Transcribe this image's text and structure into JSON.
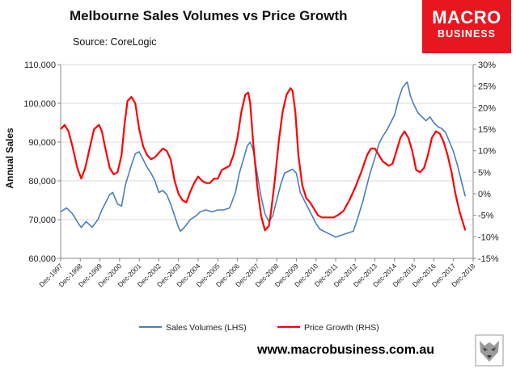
{
  "header": {
    "title": "Melbourne Sales Volumes vs Price Growth",
    "source": "Source: CoreLogic",
    "logo_line1": "MACRO",
    "logo_line2": "BUSINESS",
    "website": "www.macrobusiness.com.au"
  },
  "chart_data": {
    "type": "line",
    "title": "Melbourne Sales Volumes vs Price Growth",
    "ylabel": "Annual Sales",
    "y2label": "",
    "ylim": [
      60000,
      110000
    ],
    "y2lim": [
      -15,
      30
    ],
    "y_ticks": [
      "60,000",
      "70,000",
      "80,000",
      "90,000",
      "100,000",
      "110,000"
    ],
    "y2_ticks": [
      "-15%",
      "-10%",
      "-5%",
      "0%",
      "5%",
      "10%",
      "15%",
      "20%",
      "25%",
      "30%"
    ],
    "x_ticks": [
      "Dec-1997",
      "Dec-1998",
      "Dec-1999",
      "Dec-2000",
      "Dec-2001",
      "Dec-2002",
      "Dec-2003",
      "Dec-2004",
      "Dec-2005",
      "Dec-2006",
      "Dec-2007",
      "Dec-2008",
      "Dec-2009",
      "Dec-2010",
      "Dec-2011",
      "Dec-2012",
      "Dec-2013",
      "Dec-2014",
      "Dec-2015",
      "Dec-2016",
      "Dec-2017",
      "Dec-2018"
    ],
    "grid": "horizontal",
    "legend_position": "bottom",
    "series": [
      {
        "name": "Sales Volumes (LHS)",
        "axis": "left",
        "color": "#4a7ebb",
        "x": [
          1997.9,
          1998.2,
          1998.5,
          1998.8,
          1998.95,
          1999.2,
          1999.5,
          1999.8,
          2000.0,
          2000.2,
          2000.4,
          2000.55,
          2000.8,
          2001.0,
          2001.2,
          2001.5,
          2001.7,
          2001.9,
          2002.1,
          2002.3,
          2002.5,
          2002.7,
          2002.9,
          2003.1,
          2003.3,
          2003.5,
          2003.7,
          2003.9,
          2004.0,
          2004.2,
          2004.5,
          2004.8,
          2005.0,
          2005.3,
          2005.6,
          2005.9,
          2006.2,
          2006.5,
          2006.8,
          2007.0,
          2007.2,
          2007.4,
          2007.55,
          2007.7,
          2007.9,
          2008.1,
          2008.3,
          2008.5,
          2008.7,
          2008.9,
          2009.1,
          2009.3,
          2009.5,
          2009.7,
          2009.9,
          2010.1,
          2010.3,
          2010.5,
          2010.7,
          2010.9,
          2011.1,
          2011.3,
          2011.5,
          2011.7,
          2011.9,
          2012.2,
          2012.5,
          2012.8,
          2013.0,
          2013.3,
          2013.6,
          2013.9,
          2014.1,
          2014.3,
          2014.5,
          2014.7,
          2014.9,
          2015.1,
          2015.3,
          2015.45,
          2015.55,
          2015.7,
          2015.9,
          2016.1,
          2016.3,
          2016.5,
          2016.7,
          2016.9,
          2017.1,
          2017.3,
          2017.5,
          2017.7,
          2017.9,
          2018.1,
          2018.3,
          2018.5
        ],
        "values": [
          72000,
          73000,
          71500,
          69000,
          68000,
          69500,
          68000,
          70000,
          72500,
          74500,
          76500,
          77000,
          74000,
          73500,
          79000,
          84000,
          87000,
          87500,
          85500,
          83500,
          82000,
          80000,
          77000,
          77500,
          76500,
          74000,
          71000,
          68000,
          67000,
          68000,
          70000,
          71000,
          72000,
          72500,
          72000,
          72500,
          72500,
          73000,
          77000,
          82000,
          85500,
          89000,
          90000,
          88000,
          82000,
          76000,
          71500,
          69500,
          71000,
          75000,
          79000,
          82000,
          82500,
          83000,
          82000,
          77000,
          75000,
          73000,
          71000,
          69000,
          67500,
          67000,
          66500,
          66000,
          65500,
          66000,
          66500,
          67000,
          70000,
          75000,
          81000,
          86000,
          89500,
          91500,
          93000,
          95000,
          97000,
          101000,
          104000,
          105000,
          105500,
          102000,
          99500,
          97500,
          96500,
          95500,
          96500,
          95000,
          94000,
          93500,
          92500,
          90000,
          87500,
          84000,
          80000,
          76000
        ]
      },
      {
        "name": "Price Growth (RHS)",
        "axis": "right",
        "color": "#ff0000",
        "x": [
          1997.9,
          1998.1,
          1998.3,
          1998.5,
          1998.75,
          1998.95,
          1999.15,
          1999.4,
          1999.6,
          1999.85,
          2000.0,
          2000.2,
          2000.4,
          2000.6,
          2000.8,
          2001.0,
          2001.15,
          2001.3,
          2001.5,
          2001.7,
          2001.9,
          2002.1,
          2002.3,
          2002.5,
          2002.7,
          2002.9,
          2003.1,
          2003.3,
          2003.5,
          2003.7,
          2003.9,
          2004.1,
          2004.3,
          2004.5,
          2004.7,
          2004.9,
          2005.1,
          2005.3,
          2005.5,
          2005.7,
          2005.9,
          2006.1,
          2006.3,
          2006.5,
          2006.7,
          2006.9,
          2007.1,
          2007.3,
          2007.45,
          2007.55,
          2007.7,
          2007.9,
          2008.1,
          2008.3,
          2008.5,
          2008.6,
          2008.8,
          2009.0,
          2009.2,
          2009.4,
          2009.6,
          2009.7,
          2009.85,
          2010.0,
          2010.2,
          2010.4,
          2010.6,
          2010.8,
          2011.0,
          2011.2,
          2011.5,
          2011.8,
          2012.0,
          2012.3,
          2012.6,
          2012.9,
          2013.2,
          2013.5,
          2013.7,
          2013.9,
          2014.1,
          2014.3,
          2014.6,
          2014.8,
          2015.0,
          2015.2,
          2015.4,
          2015.6,
          2015.8,
          2016.0,
          2016.2,
          2016.4,
          2016.6,
          2016.8,
          2017.0,
          2017.2,
          2017.4,
          2017.6,
          2017.8,
          2018.0,
          2018.2,
          2018.5
        ],
        "values": [
          15,
          16,
          14.5,
          11,
          6,
          3.5,
          6,
          11,
          15,
          16,
          14.5,
          10,
          6,
          4.5,
          5,
          9,
          16,
          21.5,
          22.5,
          21,
          15,
          11,
          9,
          8,
          8.5,
          9.5,
          10.5,
          10,
          8,
          3,
          0,
          -1.5,
          -2,
          0.5,
          2.5,
          4,
          3,
          2.5,
          2.5,
          3.5,
          3.5,
          5.5,
          6,
          6.5,
          9,
          13,
          19,
          23,
          23.5,
          21,
          12,
          2,
          -5,
          -8.5,
          -7.5,
          -4.5,
          3,
          12,
          19,
          23,
          24.5,
          24,
          19,
          9,
          2,
          -1,
          -2,
          -3.5,
          -5,
          -5.5,
          -5.5,
          -5.5,
          -5,
          -4,
          -1.5,
          1.5,
          5,
          9,
          10.5,
          10.5,
          9,
          7.5,
          6.5,
          7,
          10,
          13,
          14.5,
          13,
          10,
          5.5,
          5,
          6,
          9,
          13,
          14.5,
          14,
          12,
          9,
          5,
          0,
          -4,
          -8.5
        ]
      }
    ]
  }
}
